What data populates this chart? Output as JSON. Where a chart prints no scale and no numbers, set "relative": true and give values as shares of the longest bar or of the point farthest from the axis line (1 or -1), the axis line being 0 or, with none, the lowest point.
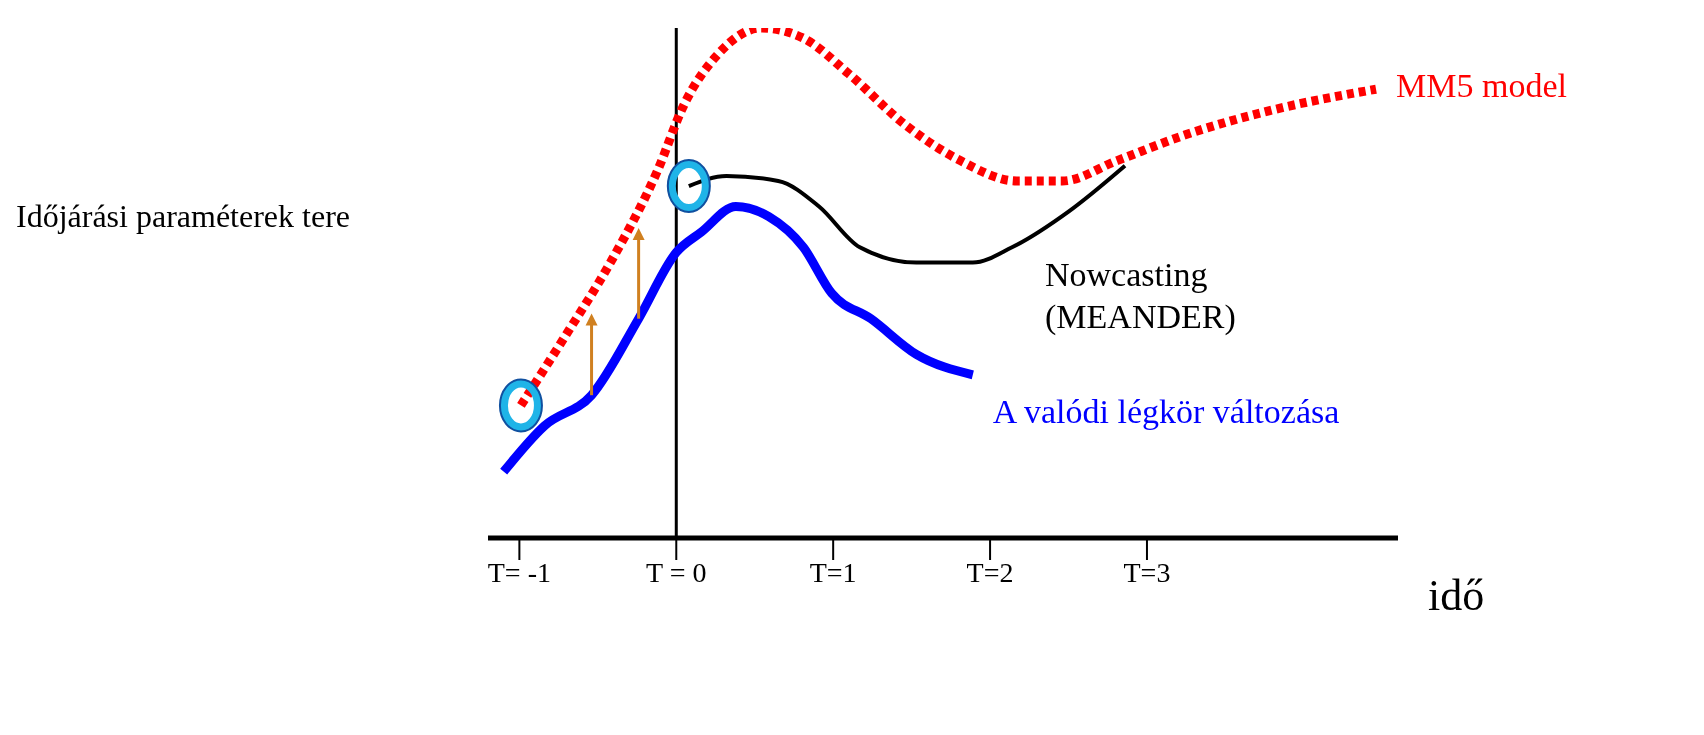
{
  "chart_data": {
    "type": "line",
    "relative": true,
    "xlabel": "idő",
    "ylabel": "Időjárási paraméterek tere",
    "xlim": [
      -1.2,
      4.6
    ],
    "xticks": [
      {
        "value": -1,
        "label": "T= -1"
      },
      {
        "value": 0,
        "label": "T = 0"
      },
      {
        "value": 1,
        "label": "T=1"
      },
      {
        "value": 2,
        "label": "T=2"
      },
      {
        "value": 3,
        "label": "T=3"
      }
    ],
    "ref_lines": [
      {
        "axis": "x",
        "value": 0,
        "label": null,
        "color": "#000000"
      }
    ],
    "series": [
      {
        "name": "MM5 model",
        "color": "#ff0000",
        "line_style": "dashed",
        "x": [
          -0.99,
          -0.72,
          -0.42,
          -0.12,
          0.05,
          0.27,
          0.54,
          0.81,
          1.1,
          1.46,
          1.81,
          2.17,
          2.46,
          2.81,
          3.24,
          3.81,
          4.46
        ],
        "values": [
          0.26,
          0.39,
          0.54,
          0.72,
          0.85,
          0.95,
          1.0,
          0.98,
          0.91,
          0.81,
          0.74,
          0.7,
          0.7,
          0.74,
          0.79,
          0.84,
          0.88
        ]
      },
      {
        "name": "Nowcasting (MEANDER)",
        "color": "#000000",
        "line_style": "solid",
        "x": [
          0.08,
          0.32,
          0.65,
          0.91,
          1.17,
          1.53,
          1.89,
          2.14,
          2.5,
          2.86
        ],
        "values": [
          0.69,
          0.71,
          0.7,
          0.65,
          0.57,
          0.54,
          0.54,
          0.57,
          0.64,
          0.73
        ]
      },
      {
        "name": "A valódi légkör változása",
        "color": "#0000ff",
        "line_style": "solid",
        "x": [
          -1.1,
          -0.84,
          -0.54,
          -0.24,
          0,
          0.16,
          0.38,
          0.59,
          0.81,
          0.99,
          1.24,
          1.53,
          1.89
        ],
        "values": [
          0.13,
          0.22,
          0.28,
          0.43,
          0.56,
          0.6,
          0.65,
          0.63,
          0.57,
          0.48,
          0.43,
          0.36,
          0.32
        ]
      }
    ]
  }
}
